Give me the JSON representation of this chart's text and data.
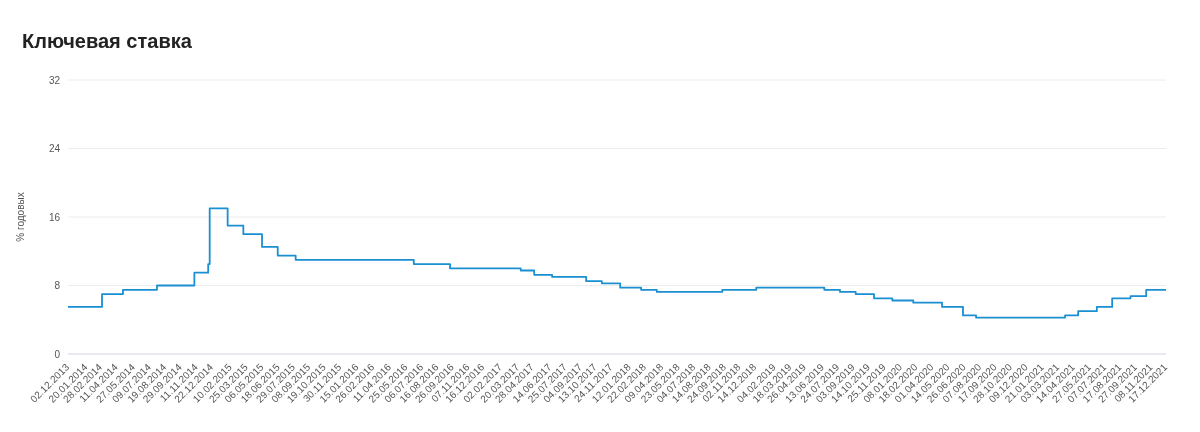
{
  "chart_data": {
    "type": "step",
    "title": "Ключевая ставка",
    "ylabel": "% годовых",
    "x": [
      "2013-12-02",
      "2014-03-03",
      "2014-04-28",
      "2014-07-28",
      "2014-11-05",
      "2014-12-12",
      "2014-12-16",
      "2015-02-02",
      "2015-03-16",
      "2015-05-05",
      "2015-06-16",
      "2015-08-03",
      "2016-06-14",
      "2016-09-19",
      "2017-03-27",
      "2017-05-02",
      "2017-06-19",
      "2017-09-18",
      "2017-10-30",
      "2017-12-18",
      "2018-02-12",
      "2018-03-26",
      "2018-09-17",
      "2018-12-17",
      "2019-06-17",
      "2019-07-29",
      "2019-09-09",
      "2019-10-28",
      "2019-12-16",
      "2020-02-10",
      "2020-04-27",
      "2020-06-22",
      "2020-07-27",
      "2021-03-22",
      "2021-04-26",
      "2021-06-15",
      "2021-07-26",
      "2021-09-13",
      "2021-10-25",
      "2021-12-17"
    ],
    "values": [
      5.5,
      7,
      7.5,
      8,
      9.5,
      10.5,
      17,
      15,
      14,
      12.5,
      11.5,
      11,
      10.5,
      10,
      9.75,
      9.25,
      9,
      8.5,
      8.25,
      7.75,
      7.5,
      7.25,
      7.5,
      7.75,
      7.5,
      7.25,
      7,
      6.5,
      6.25,
      6,
      5.5,
      4.5,
      4.25,
      4.5,
      5,
      5.5,
      6.5,
      6.75,
      7.5,
      7.5
    ],
    "color": "#1a8fd1",
    "line_style": "solid",
    "marker": "none",
    "xlim": [
      "2013-12-02",
      "2021-12-17"
    ],
    "xticks": [
      {
        "value": "2013-12-02",
        "label": "02.12.2013"
      },
      {
        "value": "2014-01-20",
        "label": "20.01.2014"
      },
      {
        "value": "2014-02-28",
        "label": "28.02.2014"
      },
      {
        "value": "2014-04-11",
        "label": "11.04.2014"
      },
      {
        "value": "2014-05-27",
        "label": "27.05.2014"
      },
      {
        "value": "2014-07-09",
        "label": "09.07.2014"
      },
      {
        "value": "2014-08-19",
        "label": "19.08.2014"
      },
      {
        "value": "2014-09-29",
        "label": "29.09.2014"
      },
      {
        "value": "2014-11-11",
        "label": "11.11.2014"
      },
      {
        "value": "2014-12-22",
        "label": "22.12.2014"
      },
      {
        "value": "2015-02-10",
        "label": "10.02.2015"
      },
      {
        "value": "2015-03-25",
        "label": "25.03.2015"
      },
      {
        "value": "2015-05-06",
        "label": "06.05.2015"
      },
      {
        "value": "2015-06-18",
        "label": "18.06.2015"
      },
      {
        "value": "2015-07-29",
        "label": "29.07.2015"
      },
      {
        "value": "2015-09-08",
        "label": "08.09.2015"
      },
      {
        "value": "2015-10-19",
        "label": "19.10.2015"
      },
      {
        "value": "2015-11-30",
        "label": "30.11.2015"
      },
      {
        "value": "2016-01-15",
        "label": "15.01.2016"
      },
      {
        "value": "2016-02-26",
        "label": "26.02.2016"
      },
      {
        "value": "2016-04-11",
        "label": "11.04.2016"
      },
      {
        "value": "2016-05-25",
        "label": "25.05.2016"
      },
      {
        "value": "2016-07-06",
        "label": "06.07.2016"
      },
      {
        "value": "2016-08-16",
        "label": "16.08.2016"
      },
      {
        "value": "2016-09-26",
        "label": "26.09.2016"
      },
      {
        "value": "2016-11-07",
        "label": "07.11.2016"
      },
      {
        "value": "2016-12-16",
        "label": "16.12.2016"
      },
      {
        "value": "2017-02-02",
        "label": "02.02.2017"
      },
      {
        "value": "2017-03-20",
        "label": "20.03.2017"
      },
      {
        "value": "2017-04-28",
        "label": "28.04.2017"
      },
      {
        "value": "2017-06-14",
        "label": "14.06.2017"
      },
      {
        "value": "2017-07-25",
        "label": "25.07.2017"
      },
      {
        "value": "2017-09-04",
        "label": "04.09.2017"
      },
      {
        "value": "2017-10-13",
        "label": "13.10.2017"
      },
      {
        "value": "2017-11-24",
        "label": "24.11.2017"
      },
      {
        "value": "2018-01-12",
        "label": "12.01.2018"
      },
      {
        "value": "2018-02-22",
        "label": "22.02.2018"
      },
      {
        "value": "2018-04-09",
        "label": "09.04.2018"
      },
      {
        "value": "2018-05-23",
        "label": "23.05.2018"
      },
      {
        "value": "2018-07-04",
        "label": "04.07.2018"
      },
      {
        "value": "2018-08-14",
        "label": "14.08.2018"
      },
      {
        "value": "2018-09-24",
        "label": "24.09.2018"
      },
      {
        "value": "2018-11-02",
        "label": "02.11.2018"
      },
      {
        "value": "2018-12-14",
        "label": "14.12.2018"
      },
      {
        "value": "2019-02-04",
        "label": "04.02.2019"
      },
      {
        "value": "2019-03-18",
        "label": "18.03.2019"
      },
      {
        "value": "2019-04-26",
        "label": "26.04.2019"
      },
      {
        "value": "2019-06-13",
        "label": "13.06.2019"
      },
      {
        "value": "2019-07-24",
        "label": "24.07.2019"
      },
      {
        "value": "2019-09-03",
        "label": "03.09.2019"
      },
      {
        "value": "2019-10-14",
        "label": "14.10.2019"
      },
      {
        "value": "2019-11-25",
        "label": "25.11.2019"
      },
      {
        "value": "2020-01-08",
        "label": "08.01.2020"
      },
      {
        "value": "2020-02-18",
        "label": "18.02.2020"
      },
      {
        "value": "2020-04-01",
        "label": "01.04.2020"
      },
      {
        "value": "2020-05-14",
        "label": "14.05.2020"
      },
      {
        "value": "2020-06-26",
        "label": "26.06.2020"
      },
      {
        "value": "2020-08-07",
        "label": "07.08.2020"
      },
      {
        "value": "2020-09-17",
        "label": "17.09.2020"
      },
      {
        "value": "2020-10-28",
        "label": "28.10.2020"
      },
      {
        "value": "2020-12-09",
        "label": "09.12.2020"
      },
      {
        "value": "2021-01-21",
        "label": "21.01.2021"
      },
      {
        "value": "2021-03-03",
        "label": "03.03.2021"
      },
      {
        "value": "2021-04-14",
        "label": "14.04.2021"
      },
      {
        "value": "2021-05-27",
        "label": "27.05.2021"
      },
      {
        "value": "2021-07-07",
        "label": "07.07.2021"
      },
      {
        "value": "2021-08-17",
        "label": "17.08.2021"
      },
      {
        "value": "2021-09-27",
        "label": "27.09.2021"
      },
      {
        "value": "2021-11-08",
        "label": "08.11.2021"
      },
      {
        "value": "2021-12-17",
        "label": "17.12.2021"
      }
    ],
    "ylim": [
      0,
      32
    ],
    "yticks": [
      0,
      8,
      16,
      24,
      32
    ],
    "grid": "y"
  }
}
